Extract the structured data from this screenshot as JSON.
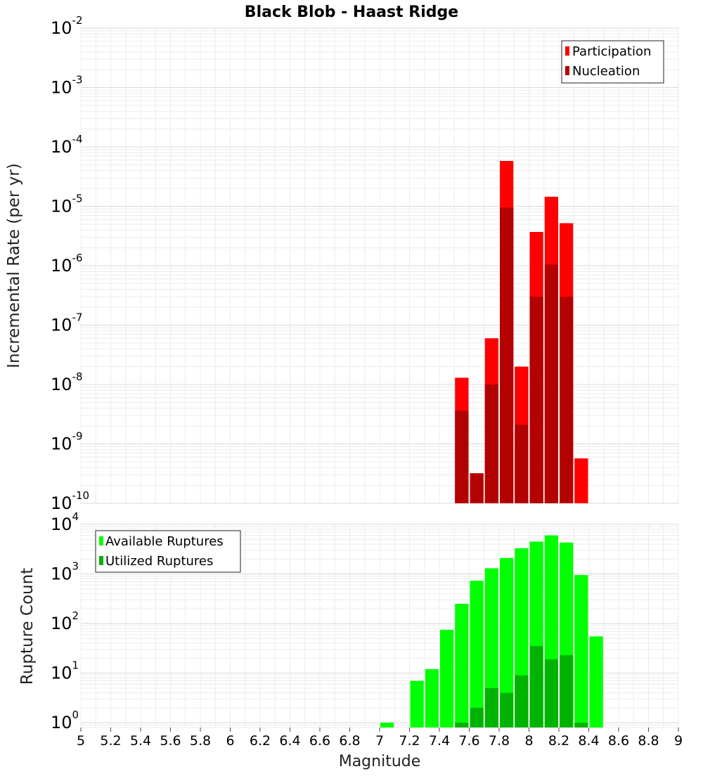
{
  "title": "Black Blob - Haast Ridge",
  "xlabel": "Magnitude",
  "x_ticks": [
    "5",
    "5.2",
    "5.4",
    "5.6",
    "5.8",
    "6",
    "6.2",
    "6.4",
    "6.6",
    "6.8",
    "7",
    "7.2",
    "7.4",
    "7.6",
    "7.8",
    "8",
    "8.2",
    "8.4",
    "8.6",
    "8.8",
    "9"
  ],
  "colors": {
    "participation": "#ff0000",
    "nucleation": "#b30000",
    "available": "#00ff00",
    "utilized": "#00b300"
  },
  "chart_data": [
    {
      "type": "bar",
      "title": "Black Blob - Haast Ridge",
      "xlabel": "Magnitude",
      "ylabel": "Incremental Rate (per yr)",
      "xlim": [
        5,
        9
      ],
      "ylim": [
        1e-10,
        0.01
      ],
      "yscale": "log",
      "y_tick_exponents": [
        "-2",
        "-3",
        "-4",
        "-5",
        "-6",
        "-7",
        "-8",
        "-9",
        "-10"
      ],
      "grid": true,
      "legend_position": "top-right",
      "bin_width": 0.1,
      "series": [
        {
          "name": "Participation",
          "x": [
            7.55,
            7.65,
            7.75,
            7.85,
            7.95,
            8.05,
            8.15,
            8.25,
            8.35
          ],
          "values": [
            1.3e-08,
            3.2e-10,
            6e-08,
            5.8e-05,
            2e-08,
            3.7e-06,
            1.45e-05,
            5.2e-06,
            5.7e-10
          ]
        },
        {
          "name": "Nucleation",
          "x": [
            7.55,
            7.65,
            7.75,
            7.85,
            7.95,
            8.05,
            8.15,
            8.25
          ],
          "values": [
            3.6e-09,
            3.2e-10,
            1e-08,
            9.5e-06,
            2.1e-09,
            3e-07,
            1.05e-06,
            3e-07
          ]
        }
      ]
    },
    {
      "type": "bar",
      "xlabel": "Magnitude",
      "ylabel": "Rupture Count",
      "xlim": [
        5,
        9
      ],
      "ylim": [
        0.8,
        10000
      ],
      "yscale": "log",
      "y_tick_exponents": [
        "4",
        "3",
        "2",
        "1",
        "0"
      ],
      "grid": true,
      "legend_position": "top-left",
      "bin_width": 0.1,
      "series": [
        {
          "name": "Available Ruptures",
          "x": [
            7.05,
            7.25,
            7.35,
            7.45,
            7.55,
            7.65,
            7.75,
            7.85,
            7.95,
            8.05,
            8.15,
            8.25,
            8.35,
            8.45
          ],
          "values": [
            1,
            7,
            12,
            75,
            250,
            730,
            1300,
            2100,
            3300,
            4500,
            6000,
            4300,
            950,
            55
          ]
        },
        {
          "name": "Utilized Ruptures",
          "x": [
            7.55,
            7.65,
            7.75,
            7.85,
            7.95,
            8.05,
            8.15,
            8.25,
            8.35
          ],
          "values": [
            1,
            2,
            5,
            4,
            9,
            35,
            19,
            23,
            1
          ]
        }
      ]
    }
  ]
}
